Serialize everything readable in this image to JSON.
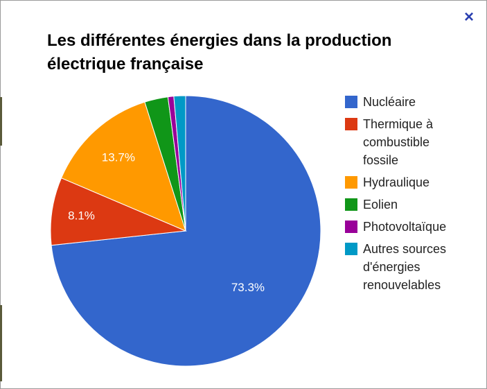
{
  "window": {
    "close_label": "×"
  },
  "chart_data": {
    "type": "pie",
    "title": "Les différentes énergies dans la production électrique française",
    "legend_position": "right",
    "slices": [
      {
        "name": "Nucléaire",
        "value": 73.3,
        "label": "73.3%",
        "color": "#3366cc"
      },
      {
        "name": "Thermique à combustible fossile",
        "value": 8.1,
        "label": "8.1%",
        "color": "#dc3912"
      },
      {
        "name": "Hydraulique",
        "value": 13.7,
        "label": "13.7%",
        "color": "#ff9900"
      },
      {
        "name": "Eolien",
        "value": 2.8,
        "label": "",
        "color": "#109618"
      },
      {
        "name": "Photovoltaïque",
        "value": 0.7,
        "label": "",
        "color": "#990099"
      },
      {
        "name": "Autres sources d'énergies renouvelables",
        "value": 1.4,
        "label": "",
        "color": "#0099c6"
      }
    ]
  }
}
